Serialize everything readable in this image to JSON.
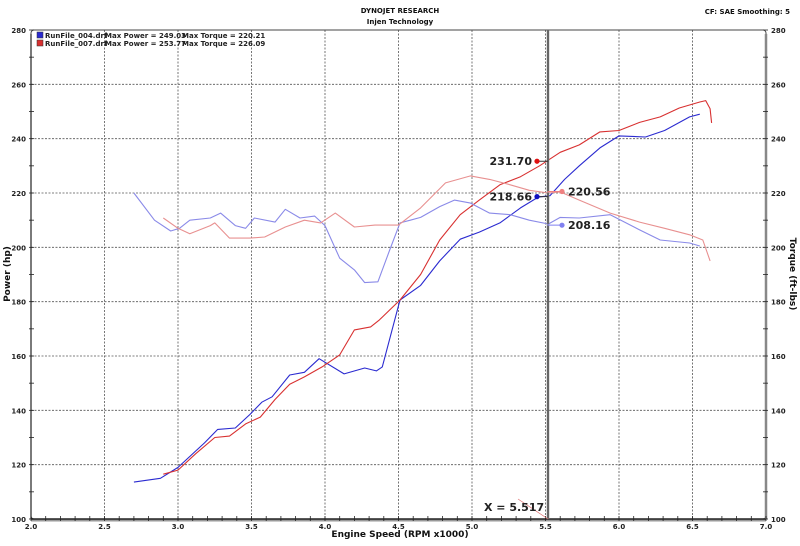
{
  "header": {
    "title": "DYNOJET RESEARCH",
    "subtitle": "Injen Technology",
    "settings": "CF: SAE  Smoothing: 5"
  },
  "legend": [
    {
      "file": "RunFile_004.drf",
      "max_power": "Max Power = 249.03",
      "max_torque": "Max Torque = 220.21",
      "color": "#2a2ad0"
    },
    {
      "file": "RunFile_007.drf",
      "max_power": "Max Power = 253.77",
      "max_torque": "Max Torque = 226.09",
      "color": "#d83030"
    }
  ],
  "cursor": {
    "label": "X = 5.517",
    "x": 5.517,
    "readouts": [
      {
        "text": "231.70",
        "series": "power_007",
        "color": "#e01010"
      },
      {
        "text": "218.66",
        "series": "power_004",
        "color": "#1010c0"
      },
      {
        "text": "220.56",
        "series": "torque_007",
        "color": "#f08080"
      },
      {
        "text": "208.16",
        "series": "torque_004",
        "color": "#8080f0"
      }
    ]
  },
  "chart_data": {
    "type": "line",
    "xlabel": "Engine Speed (RPM x1000)",
    "ylabel": "Power (hp)",
    "ylabel_right": "Torque (ft-lbs)",
    "xlim": [
      2.0,
      7.0
    ],
    "ylim": [
      100,
      280
    ],
    "xticks": [
      "2.0",
      "2.5",
      "3.0",
      "3.5",
      "4.0",
      "4.5",
      "5.0",
      "5.5",
      "6.0",
      "6.5",
      "7.0"
    ],
    "yticks": [
      "100",
      "120",
      "140",
      "160",
      "180",
      "200",
      "220",
      "240",
      "260",
      "280"
    ],
    "grid": true,
    "legend_position": "top-left",
    "series": [
      {
        "id": "power_004",
        "color": "#2a2ad0",
        "points": [
          [
            2.7,
            113.6
          ],
          [
            2.88,
            115
          ],
          [
            3.0,
            119
          ],
          [
            3.18,
            128
          ],
          [
            3.27,
            133
          ],
          [
            3.39,
            133.5
          ],
          [
            3.49,
            138.5
          ],
          [
            3.57,
            143
          ],
          [
            3.64,
            145
          ],
          [
            3.76,
            153
          ],
          [
            3.86,
            154
          ],
          [
            3.96,
            159
          ],
          [
            4.13,
            153.4
          ],
          [
            4.27,
            155.6
          ],
          [
            4.35,
            154.5
          ],
          [
            4.39,
            156
          ],
          [
            4.51,
            180.6
          ],
          [
            4.65,
            186
          ],
          [
            4.78,
            195
          ],
          [
            4.92,
            203
          ],
          [
            5.05,
            205.6
          ],
          [
            5.19,
            209
          ],
          [
            5.33,
            214.5
          ],
          [
            5.45,
            218.5
          ],
          [
            5.53,
            219
          ],
          [
            5.63,
            225
          ],
          [
            5.73,
            230
          ],
          [
            5.87,
            236.6
          ],
          [
            6.0,
            241
          ],
          [
            6.18,
            240.6
          ],
          [
            6.31,
            243
          ],
          [
            6.48,
            248
          ],
          [
            6.55,
            249
          ]
        ]
      },
      {
        "id": "power_007",
        "color": "#d83030",
        "points": [
          [
            2.9,
            116.5
          ],
          [
            3.0,
            118
          ],
          [
            3.12,
            124
          ],
          [
            3.25,
            130
          ],
          [
            3.35,
            130.5
          ],
          [
            3.46,
            135
          ],
          [
            3.56,
            137.5
          ],
          [
            3.66,
            144
          ],
          [
            3.76,
            149.6
          ],
          [
            3.86,
            152.3
          ],
          [
            3.98,
            156
          ],
          [
            4.1,
            160.4
          ],
          [
            4.2,
            169.6
          ],
          [
            4.31,
            170.7
          ],
          [
            4.37,
            173.3
          ],
          [
            4.51,
            180.6
          ],
          [
            4.65,
            190
          ],
          [
            4.78,
            202.7
          ],
          [
            4.92,
            212
          ],
          [
            5.05,
            217.4
          ],
          [
            5.19,
            223
          ],
          [
            5.33,
            226
          ],
          [
            5.46,
            230
          ],
          [
            5.6,
            235
          ],
          [
            5.73,
            237.7
          ],
          [
            5.87,
            242.5
          ],
          [
            6.0,
            243
          ],
          [
            6.14,
            246
          ],
          [
            6.28,
            248
          ],
          [
            6.41,
            251.3
          ],
          [
            6.55,
            253.5
          ],
          [
            6.59,
            254
          ],
          [
            6.62,
            251
          ],
          [
            6.63,
            245.8
          ]
        ]
      },
      {
        "id": "torque_004",
        "color": "#8a8ae8",
        "points": [
          [
            2.7,
            220
          ],
          [
            2.84,
            210
          ],
          [
            2.95,
            206
          ],
          [
            3.01,
            207
          ],
          [
            3.08,
            210
          ],
          [
            3.22,
            210.8
          ],
          [
            3.29,
            212.6
          ],
          [
            3.39,
            208
          ],
          [
            3.46,
            207
          ],
          [
            3.52,
            210.8
          ],
          [
            3.66,
            209.3
          ],
          [
            3.73,
            214
          ],
          [
            3.83,
            210.8
          ],
          [
            3.93,
            211.5
          ],
          [
            4.0,
            208
          ],
          [
            4.1,
            196
          ],
          [
            4.2,
            191.7
          ],
          [
            4.27,
            187
          ],
          [
            4.36,
            187.3
          ],
          [
            4.44,
            199
          ],
          [
            4.51,
            209
          ],
          [
            4.58,
            210
          ],
          [
            4.65,
            211
          ],
          [
            4.78,
            215
          ],
          [
            4.88,
            217.4
          ],
          [
            4.99,
            216.3
          ],
          [
            5.12,
            212.6
          ],
          [
            5.26,
            212
          ],
          [
            5.39,
            210
          ],
          [
            5.52,
            208.6
          ],
          [
            5.6,
            211
          ],
          [
            5.73,
            210.8
          ],
          [
            5.94,
            212
          ],
          [
            6.14,
            206.4
          ],
          [
            6.28,
            202.7
          ],
          [
            6.48,
            201.6
          ],
          [
            6.55,
            200.5
          ]
        ]
      },
      {
        "id": "torque_007",
        "color": "#e89090",
        "points": [
          [
            2.9,
            210.8
          ],
          [
            3.0,
            207
          ],
          [
            3.08,
            205
          ],
          [
            3.22,
            208
          ],
          [
            3.25,
            209
          ],
          [
            3.35,
            203.4
          ],
          [
            3.49,
            203.4
          ],
          [
            3.59,
            203.8
          ],
          [
            3.73,
            207.5
          ],
          [
            3.86,
            210
          ],
          [
            3.97,
            209
          ],
          [
            4.07,
            212.6
          ],
          [
            4.2,
            207.5
          ],
          [
            4.34,
            208.2
          ],
          [
            4.5,
            208.2
          ],
          [
            4.65,
            214.5
          ],
          [
            4.82,
            223.7
          ],
          [
            4.99,
            226.3
          ],
          [
            5.12,
            225
          ],
          [
            5.26,
            223
          ],
          [
            5.39,
            221
          ],
          [
            5.52,
            220
          ],
          [
            5.6,
            220.4
          ],
          [
            5.73,
            217.4
          ],
          [
            5.94,
            212.6
          ],
          [
            6.14,
            209.3
          ],
          [
            6.31,
            207
          ],
          [
            6.48,
            204.6
          ],
          [
            6.57,
            202.7
          ],
          [
            6.62,
            195
          ]
        ]
      }
    ]
  }
}
